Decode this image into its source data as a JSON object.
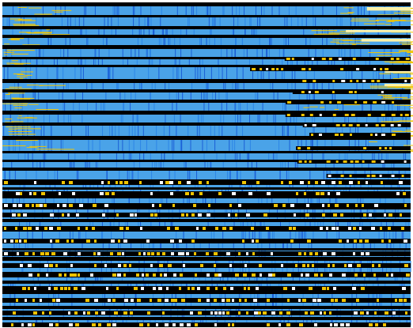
{
  "colors": {
    "background": "#ffffff",
    "band": "#000000",
    "blue_light": "#4aa3e8",
    "blue_mid": "#2d86e6",
    "blue_dark": "#1b5fd6",
    "yellow": "#f0c400",
    "yellow_pale": "#fff2a6",
    "white": "#ffffff"
  },
  "pattern": {
    "description_visible_text": ""
  }
}
